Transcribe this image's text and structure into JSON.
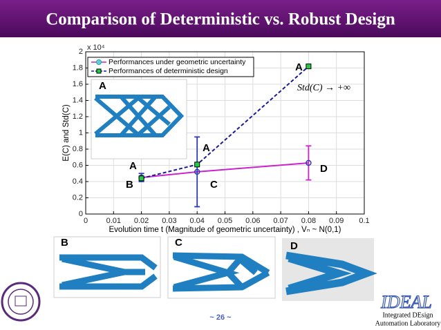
{
  "slide": {
    "title": "Comparison of Deterministic vs. Robust Design",
    "page": "~ 26 ~",
    "lab_logo": "IDEAL",
    "lab_line1": "Integrated DEsign",
    "lab_line2": "Automation Laboratory"
  },
  "insets": [
    {
      "label": "A"
    },
    {
      "label": "B"
    },
    {
      "label": "C"
    },
    {
      "label": "D"
    }
  ],
  "chart_data": {
    "type": "line",
    "xlabel": "Evolution time t (Magnitude of geometric uncertainty) , Vₙ ~ N(0,1)",
    "ylabel": "E(C) and Std(C)",
    "multiplier": "x 10⁴",
    "x": [
      0.02,
      0.04,
      0.08
    ],
    "series": [
      {
        "name": "Performances under geometric uncertainty",
        "color": "#cc22cc",
        "marker_color": "#2a3ab8",
        "values": [
          0.45,
          0.52,
          0.63
        ],
        "errors": [
          0.05,
          0.43,
          0.21
        ],
        "error_colors": [
          "#2a3ab8",
          "#2a3ab8",
          "#cc22cc"
        ]
      },
      {
        "name": "Performances of deterministic design",
        "color": "#1a1a9a",
        "marker_color": "#22cc44",
        "dashed": true,
        "values": [
          0.44,
          0.61,
          1.82
        ]
      }
    ],
    "annotations": [
      "A",
      "A",
      "A",
      "B",
      "C",
      "D",
      "Std(C) → +∞"
    ],
    "xlim": [
      0,
      0.1
    ],
    "xticks": [
      0,
      0.01,
      0.02,
      0.03,
      0.04,
      0.05,
      0.06,
      0.07,
      0.08,
      0.09,
      0.1
    ],
    "ylim": [
      0,
      2
    ],
    "yticks": [
      0,
      0.2,
      0.4,
      0.6,
      0.8,
      1,
      1.2,
      1.4,
      1.6,
      1.8,
      2
    ],
    "grid": true,
    "legend": "upper left"
  }
}
